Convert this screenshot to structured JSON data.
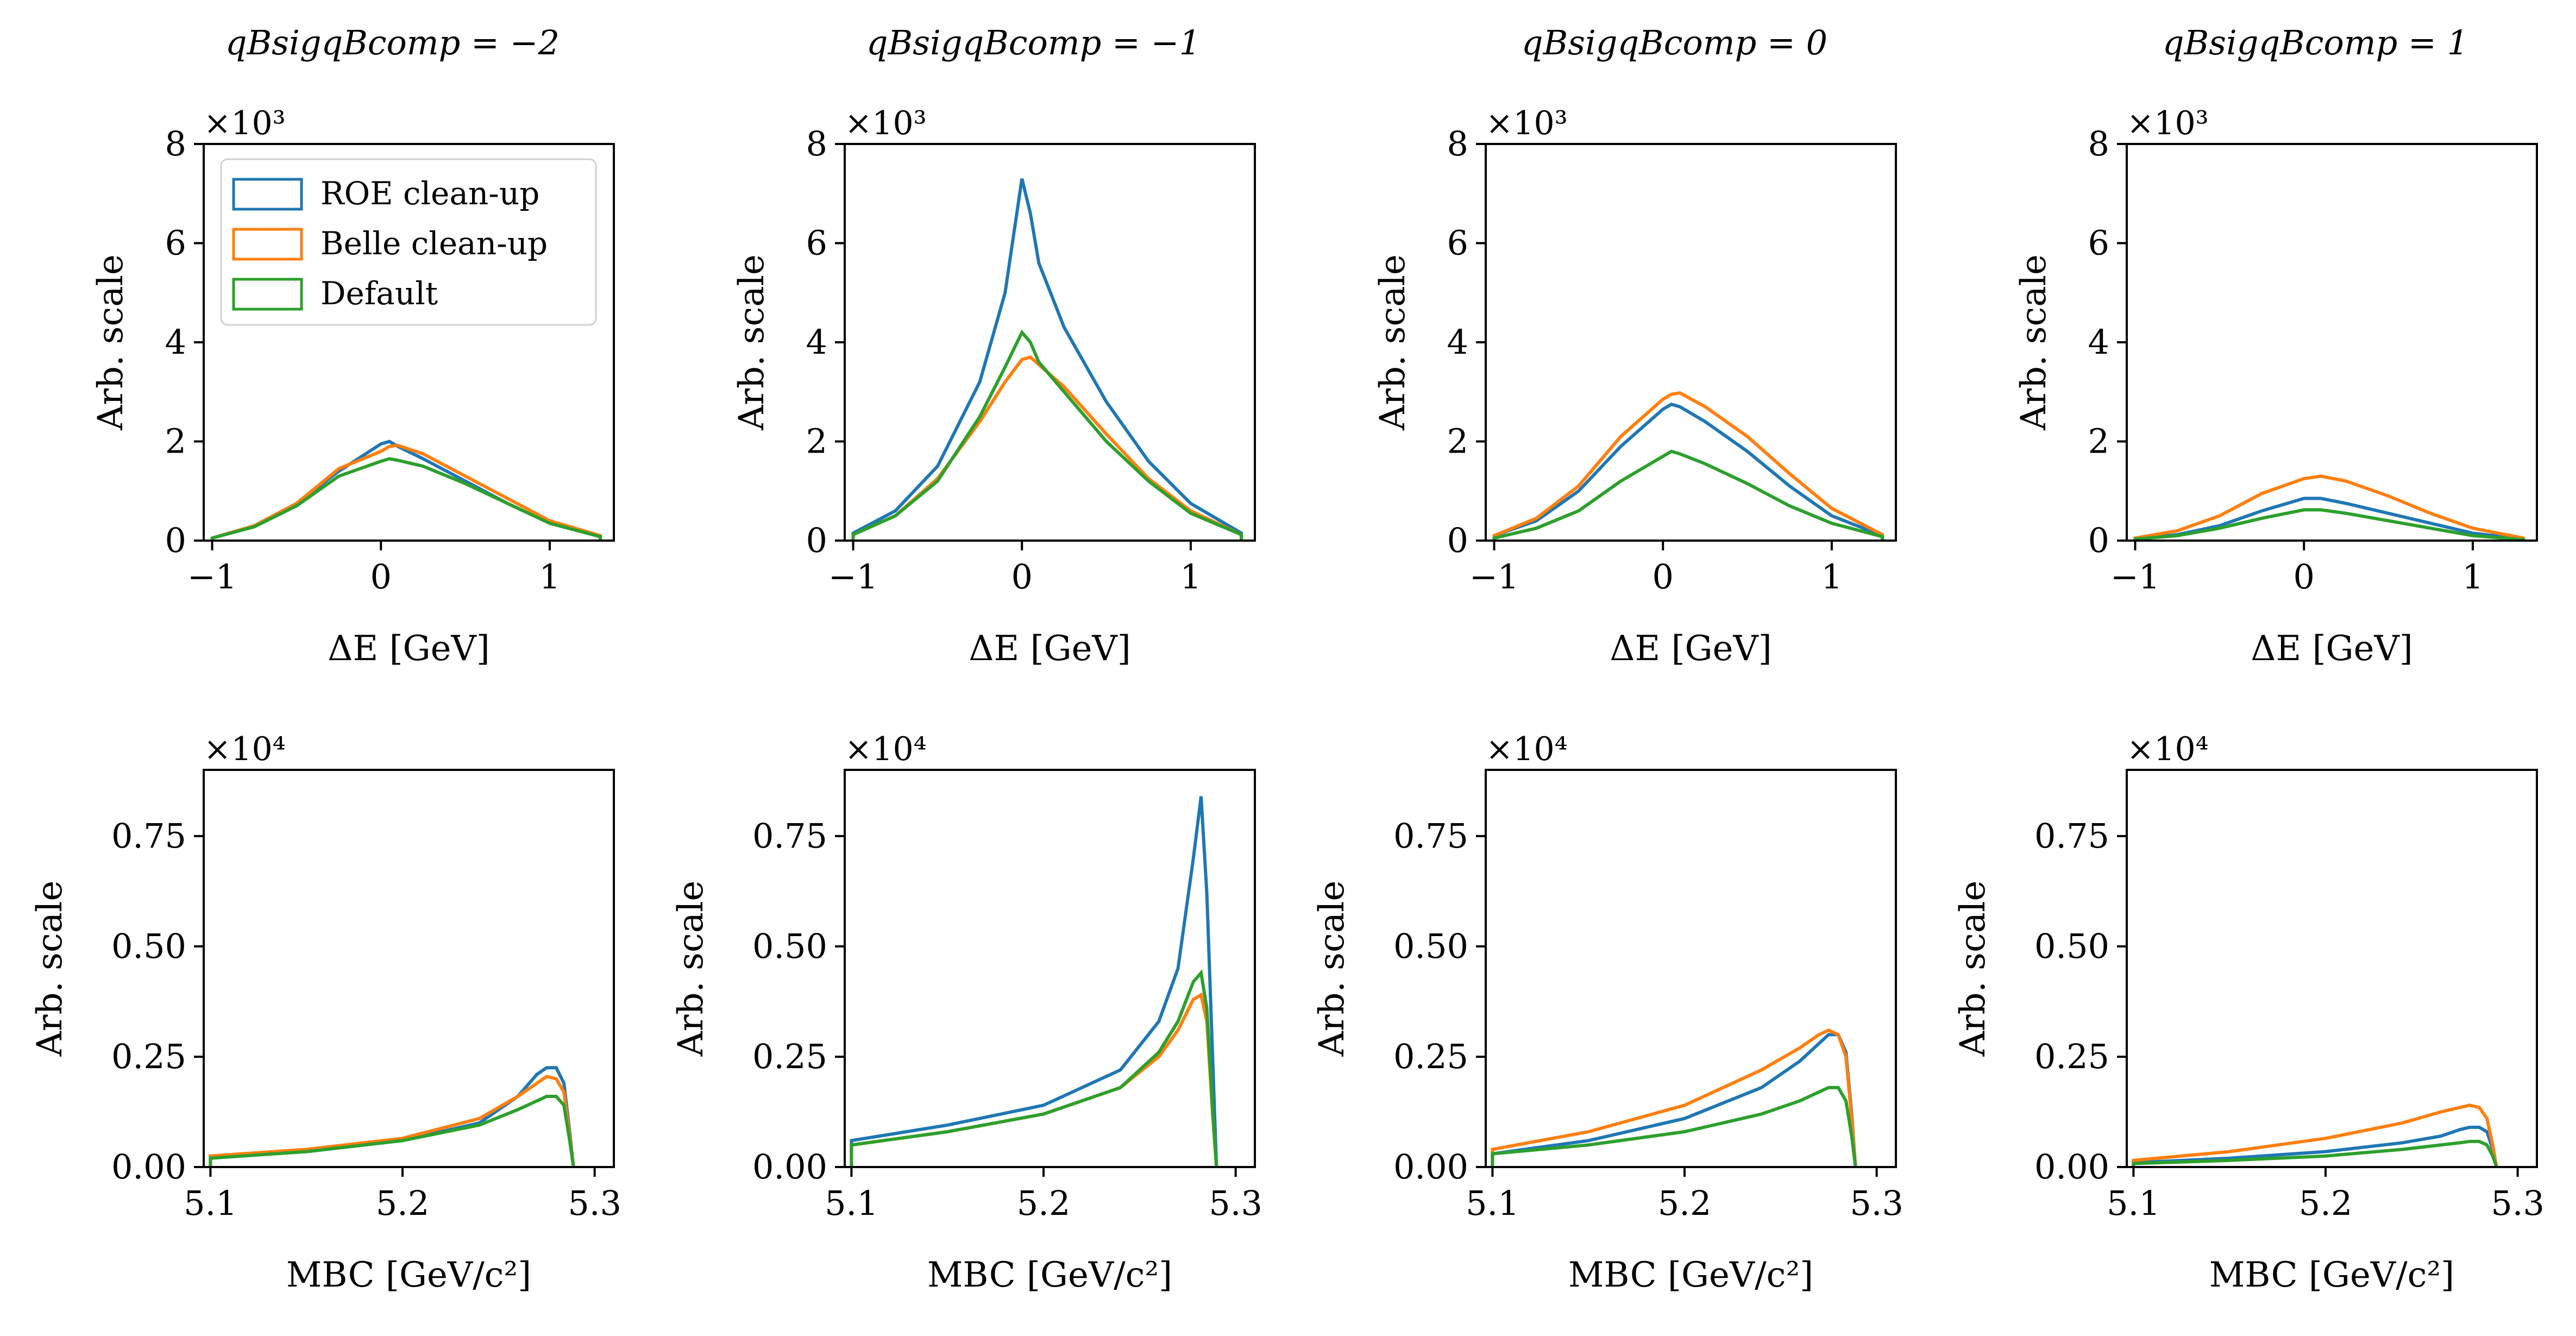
{
  "colors": {
    "roe": "#1f77b4",
    "belle": "#ff7f0e",
    "default": "#2ca02c"
  },
  "legend": [
    {
      "key": "roe",
      "label": "ROE clean-up"
    },
    {
      "key": "belle",
      "label": "Belle clean-up"
    },
    {
      "key": "default",
      "label": "Default"
    }
  ],
  "chart_data": [
    {
      "type": "line",
      "panel": "dE-qq-m2",
      "title": "qBsigqBcomp = −2",
      "xlabel": "ΔE [GeV]",
      "ylabel": "Arb. scale",
      "multiplier": "×10³",
      "xlim": [
        -1.05,
        1.38
      ],
      "ylim": [
        0,
        8
      ],
      "xticks": [
        {
          "v": -1,
          "t": "−1"
        },
        {
          "v": 0,
          "t": "0"
        },
        {
          "v": 1,
          "t": "1"
        }
      ],
      "yticks": [
        {
          "v": 0,
          "t": "0"
        },
        {
          "v": 2,
          "t": "2"
        },
        {
          "v": 4,
          "t": "4"
        },
        {
          "v": 6,
          "t": "6"
        },
        {
          "v": 8,
          "t": "8"
        }
      ],
      "legend": true,
      "x": [
        -1.0,
        -0.75,
        -0.5,
        -0.25,
        0.0,
        0.05,
        0.1,
        0.25,
        0.5,
        0.75,
        1.0,
        1.3
      ],
      "series": [
        {
          "key": "roe",
          "name": "ROE clean-up",
          "values": [
            0.05,
            0.3,
            0.75,
            1.4,
            1.95,
            2.0,
            1.9,
            1.65,
            1.2,
            0.75,
            0.35,
            0.08
          ]
        },
        {
          "key": "belle",
          "name": "Belle clean-up",
          "values": [
            0.05,
            0.3,
            0.75,
            1.45,
            1.8,
            1.9,
            1.92,
            1.75,
            1.3,
            0.85,
            0.4,
            0.1
          ]
        },
        {
          "key": "default",
          "name": "Default",
          "values": [
            0.05,
            0.28,
            0.7,
            1.3,
            1.6,
            1.65,
            1.62,
            1.5,
            1.15,
            0.75,
            0.35,
            0.08
          ]
        }
      ]
    },
    {
      "type": "line",
      "panel": "dE-qq-m1",
      "title": "qBsigqBcomp = −1",
      "xlabel": "ΔE [GeV]",
      "ylabel": "Arb. scale",
      "multiplier": "×10³",
      "xlim": [
        -1.05,
        1.38
      ],
      "ylim": [
        0,
        8
      ],
      "xticks": [
        {
          "v": -1,
          "t": "−1"
        },
        {
          "v": 0,
          "t": "0"
        },
        {
          "v": 1,
          "t": "1"
        }
      ],
      "yticks": [
        {
          "v": 0,
          "t": "0"
        },
        {
          "v": 2,
          "t": "2"
        },
        {
          "v": 4,
          "t": "4"
        },
        {
          "v": 6,
          "t": "6"
        },
        {
          "v": 8,
          "t": "8"
        }
      ],
      "legend": false,
      "x": [
        -1.0,
        -0.75,
        -0.5,
        -0.25,
        -0.1,
        0.0,
        0.05,
        0.1,
        0.25,
        0.5,
        0.75,
        1.0,
        1.3
      ],
      "series": [
        {
          "key": "roe",
          "name": "ROE clean-up",
          "values": [
            0.15,
            0.6,
            1.5,
            3.2,
            5.0,
            7.3,
            6.6,
            5.6,
            4.3,
            2.8,
            1.6,
            0.75,
            0.15
          ]
        },
        {
          "key": "belle",
          "name": "Belle clean-up",
          "values": [
            0.12,
            0.5,
            1.25,
            2.4,
            3.2,
            3.65,
            3.7,
            3.55,
            3.1,
            2.15,
            1.25,
            0.6,
            0.12
          ]
        },
        {
          "key": "default",
          "name": "Default",
          "values": [
            0.12,
            0.5,
            1.2,
            2.5,
            3.5,
            4.2,
            4.0,
            3.6,
            3.0,
            2.0,
            1.2,
            0.55,
            0.12
          ]
        }
      ]
    },
    {
      "type": "line",
      "panel": "dE-qq-0",
      "title": "qBsigqBcomp = 0",
      "xlabel": "ΔE [GeV]",
      "ylabel": "Arb. scale",
      "multiplier": "×10³",
      "xlim": [
        -1.05,
        1.38
      ],
      "ylim": [
        0,
        8
      ],
      "xticks": [
        {
          "v": -1,
          "t": "−1"
        },
        {
          "v": 0,
          "t": "0"
        },
        {
          "v": 1,
          "t": "1"
        }
      ],
      "yticks": [
        {
          "v": 0,
          "t": "0"
        },
        {
          "v": 2,
          "t": "2"
        },
        {
          "v": 4,
          "t": "4"
        },
        {
          "v": 6,
          "t": "6"
        },
        {
          "v": 8,
          "t": "8"
        }
      ],
      "legend": false,
      "x": [
        -1.0,
        -0.75,
        -0.5,
        -0.25,
        0.0,
        0.05,
        0.1,
        0.25,
        0.5,
        0.75,
        1.0,
        1.3
      ],
      "series": [
        {
          "key": "roe",
          "name": "ROE clean-up",
          "values": [
            0.1,
            0.4,
            1.0,
            1.9,
            2.65,
            2.75,
            2.7,
            2.4,
            1.8,
            1.1,
            0.5,
            0.1
          ]
        },
        {
          "key": "belle",
          "name": "Belle clean-up",
          "values": [
            0.1,
            0.45,
            1.1,
            2.1,
            2.85,
            2.95,
            2.98,
            2.7,
            2.1,
            1.35,
            0.65,
            0.12
          ]
        },
        {
          "key": "default",
          "name": "Default",
          "values": [
            0.05,
            0.25,
            0.6,
            1.2,
            1.7,
            1.8,
            1.75,
            1.55,
            1.15,
            0.7,
            0.35,
            0.08
          ]
        }
      ]
    },
    {
      "type": "line",
      "panel": "dE-qq-p1",
      "title": "qBsigqBcomp = 1",
      "xlabel": "ΔE [GeV]",
      "ylabel": "Arb. scale",
      "multiplier": "×10³",
      "xlim": [
        -1.05,
        1.38
      ],
      "ylim": [
        0,
        8
      ],
      "xticks": [
        {
          "v": -1,
          "t": "−1"
        },
        {
          "v": 0,
          "t": "0"
        },
        {
          "v": 1,
          "t": "1"
        }
      ],
      "yticks": [
        {
          "v": 0,
          "t": "0"
        },
        {
          "v": 2,
          "t": "2"
        },
        {
          "v": 4,
          "t": "4"
        },
        {
          "v": 6,
          "t": "6"
        },
        {
          "v": 8,
          "t": "8"
        }
      ],
      "legend": false,
      "x": [
        -1.0,
        -0.75,
        -0.5,
        -0.25,
        0.0,
        0.1,
        0.25,
        0.5,
        0.75,
        1.0,
        1.3
      ],
      "series": [
        {
          "key": "roe",
          "name": "ROE clean-up",
          "values": [
            0.03,
            0.12,
            0.3,
            0.6,
            0.85,
            0.85,
            0.75,
            0.55,
            0.35,
            0.15,
            0.03
          ]
        },
        {
          "key": "belle",
          "name": "Belle clean-up",
          "values": [
            0.05,
            0.2,
            0.5,
            0.95,
            1.25,
            1.3,
            1.2,
            0.9,
            0.55,
            0.25,
            0.05
          ]
        },
        {
          "key": "default",
          "name": "Default",
          "values": [
            0.03,
            0.1,
            0.25,
            0.45,
            0.62,
            0.62,
            0.55,
            0.4,
            0.25,
            0.1,
            0.02
          ]
        }
      ]
    },
    {
      "type": "line",
      "panel": "mbc-qq-m2",
      "title": "",
      "xlabel": "MBC [GeV/c²]",
      "ylabel": "Arb. scale",
      "multiplier": "×10⁴",
      "xlim": [
        5.0965,
        5.31
      ],
      "ylim": [
        0,
        0.9
      ],
      "xticks": [
        {
          "v": 5.1,
          "t": "5.1"
        },
        {
          "v": 5.2,
          "t": "5.2"
        },
        {
          "v": 5.3,
          "t": "5.3"
        }
      ],
      "yticks": [
        {
          "v": 0,
          "t": "0.00"
        },
        {
          "v": 0.25,
          "t": "0.25"
        },
        {
          "v": 0.5,
          "t": "0.50"
        },
        {
          "v": 0.75,
          "t": "0.75"
        }
      ],
      "legend": false,
      "x": [
        5.1,
        5.15,
        5.2,
        5.24,
        5.26,
        5.27,
        5.275,
        5.28,
        5.284,
        5.287,
        5.289
      ],
      "series": [
        {
          "key": "roe",
          "name": "ROE clean-up",
          "values": [
            0.025,
            0.035,
            0.06,
            0.1,
            0.16,
            0.21,
            0.225,
            0.225,
            0.19,
            0.08,
            0.0
          ]
        },
        {
          "key": "belle",
          "name": "Belle clean-up",
          "values": [
            0.025,
            0.04,
            0.065,
            0.11,
            0.16,
            0.19,
            0.205,
            0.2,
            0.17,
            0.07,
            0.0
          ]
        },
        {
          "key": "default",
          "name": "Default",
          "values": [
            0.02,
            0.035,
            0.06,
            0.095,
            0.13,
            0.15,
            0.16,
            0.16,
            0.14,
            0.06,
            0.0
          ]
        }
      ]
    },
    {
      "type": "line",
      "panel": "mbc-qq-m1",
      "title": "",
      "xlabel": "MBC [GeV/c²]",
      "ylabel": "Arb. scale",
      "multiplier": "×10⁴",
      "xlim": [
        5.0965,
        5.31
      ],
      "ylim": [
        0,
        0.9
      ],
      "xticks": [
        {
          "v": 5.1,
          "t": "5.1"
        },
        {
          "v": 5.2,
          "t": "5.2"
        },
        {
          "v": 5.3,
          "t": "5.3"
        }
      ],
      "yticks": [
        {
          "v": 0,
          "t": "0.00"
        },
        {
          "v": 0.25,
          "t": "0.25"
        },
        {
          "v": 0.5,
          "t": "0.50"
        },
        {
          "v": 0.75,
          "t": "0.75"
        }
      ],
      "legend": false,
      "x": [
        5.1,
        5.15,
        5.2,
        5.24,
        5.26,
        5.27,
        5.278,
        5.282,
        5.285,
        5.288,
        5.29
      ],
      "series": [
        {
          "key": "roe",
          "name": "ROE clean-up",
          "values": [
            0.06,
            0.095,
            0.14,
            0.22,
            0.33,
            0.45,
            0.7,
            0.84,
            0.62,
            0.25,
            0.0
          ]
        },
        {
          "key": "belle",
          "name": "Belle clean-up",
          "values": [
            0.05,
            0.08,
            0.12,
            0.18,
            0.25,
            0.31,
            0.38,
            0.39,
            0.33,
            0.12,
            0.0
          ]
        },
        {
          "key": "default",
          "name": "Default",
          "values": [
            0.05,
            0.08,
            0.12,
            0.18,
            0.26,
            0.33,
            0.42,
            0.44,
            0.36,
            0.13,
            0.0
          ]
        }
      ]
    },
    {
      "type": "line",
      "panel": "mbc-qq-0",
      "title": "",
      "xlabel": "MBC [GeV/c²]",
      "ylabel": "Arb. scale",
      "multiplier": "×10⁴",
      "xlim": [
        5.0965,
        5.31
      ],
      "ylim": [
        0,
        0.9
      ],
      "xticks": [
        {
          "v": 5.1,
          "t": "5.1"
        },
        {
          "v": 5.2,
          "t": "5.2"
        },
        {
          "v": 5.3,
          "t": "5.3"
        }
      ],
      "yticks": [
        {
          "v": 0,
          "t": "0.00"
        },
        {
          "v": 0.25,
          "t": "0.25"
        },
        {
          "v": 0.5,
          "t": "0.50"
        },
        {
          "v": 0.75,
          "t": "0.75"
        }
      ],
      "legend": false,
      "x": [
        5.1,
        5.15,
        5.2,
        5.24,
        5.26,
        5.27,
        5.275,
        5.28,
        5.284,
        5.287,
        5.289
      ],
      "series": [
        {
          "key": "roe",
          "name": "ROE clean-up",
          "values": [
            0.03,
            0.06,
            0.11,
            0.18,
            0.24,
            0.28,
            0.3,
            0.3,
            0.26,
            0.12,
            0.0
          ]
        },
        {
          "key": "belle",
          "name": "Belle clean-up",
          "values": [
            0.04,
            0.08,
            0.14,
            0.22,
            0.27,
            0.3,
            0.31,
            0.3,
            0.25,
            0.11,
            0.0
          ]
        },
        {
          "key": "default",
          "name": "Default",
          "values": [
            0.03,
            0.05,
            0.08,
            0.12,
            0.15,
            0.17,
            0.18,
            0.18,
            0.15,
            0.07,
            0.0
          ]
        }
      ]
    },
    {
      "type": "line",
      "panel": "mbc-qq-p1",
      "title": "",
      "xlabel": "MBC [GeV/c²]",
      "ylabel": "Arb. scale",
      "multiplier": "×10⁴",
      "xlim": [
        5.0965,
        5.31
      ],
      "ylim": [
        0,
        0.9
      ],
      "xticks": [
        {
          "v": 5.1,
          "t": "5.1"
        },
        {
          "v": 5.2,
          "t": "5.2"
        },
        {
          "v": 5.3,
          "t": "5.3"
        }
      ],
      "yticks": [
        {
          "v": 0,
          "t": "0.00"
        },
        {
          "v": 0.25,
          "t": "0.25"
        },
        {
          "v": 0.5,
          "t": "0.50"
        },
        {
          "v": 0.75,
          "t": "0.75"
        }
      ],
      "legend": false,
      "x": [
        5.1,
        5.15,
        5.2,
        5.24,
        5.26,
        5.27,
        5.275,
        5.28,
        5.284,
        5.287,
        5.289
      ],
      "series": [
        {
          "key": "roe",
          "name": "ROE clean-up",
          "values": [
            0.01,
            0.02,
            0.035,
            0.055,
            0.07,
            0.085,
            0.09,
            0.09,
            0.08,
            0.04,
            0.0
          ]
        },
        {
          "key": "belle",
          "name": "Belle clean-up",
          "values": [
            0.015,
            0.035,
            0.065,
            0.1,
            0.125,
            0.135,
            0.14,
            0.135,
            0.11,
            0.05,
            0.0
          ]
        },
        {
          "key": "default",
          "name": "Default",
          "values": [
            0.008,
            0.015,
            0.025,
            0.04,
            0.05,
            0.055,
            0.058,
            0.058,
            0.05,
            0.025,
            0.0
          ]
        }
      ]
    }
  ]
}
